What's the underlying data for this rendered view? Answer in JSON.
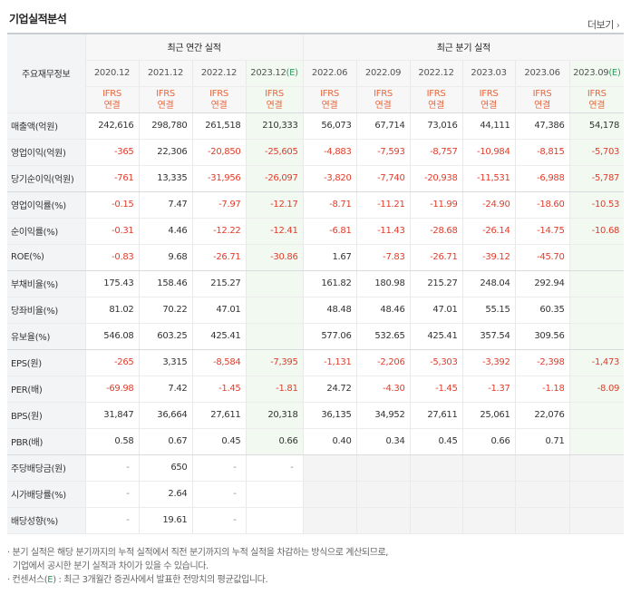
{
  "section": {
    "title": "기업실적분석",
    "more_label": "더보기",
    "more_arrow": "›"
  },
  "header": {
    "corner_label": "주요재무정보",
    "groups": [
      {
        "label": "최근 연간 실적"
      },
      {
        "label": "최근 분기 실적"
      }
    ],
    "periods": [
      {
        "label": "2020.12",
        "est_suffix": ""
      },
      {
        "label": "2021.12",
        "est_suffix": ""
      },
      {
        "label": "2022.12",
        "est_suffix": ""
      },
      {
        "label": "2023.12",
        "est_suffix": "(E)"
      },
      {
        "label": "2022.06",
        "est_suffix": ""
      },
      {
        "label": "2022.09",
        "est_suffix": ""
      },
      {
        "label": "2022.12",
        "est_suffix": ""
      },
      {
        "label": "2023.03",
        "est_suffix": ""
      },
      {
        "label": "2023.06",
        "est_suffix": ""
      },
      {
        "label": "2023.09",
        "est_suffix": "(E)"
      }
    ],
    "ifrs_line1": "IFRS",
    "ifrs_line2": "연결"
  },
  "rows": [
    {
      "label": "매출액(억원)",
      "values": [
        "242,616",
        "298,780",
        "261,518",
        "210,333",
        "56,073",
        "67,714",
        "73,016",
        "44,111",
        "47,386",
        "54,178"
      ]
    },
    {
      "label": "영업이익(억원)",
      "values": [
        "-365",
        "22,306",
        "-20,850",
        "-25,605",
        "-4,883",
        "-7,593",
        "-8,757",
        "-10,984",
        "-8,815",
        "-5,703"
      ]
    },
    {
      "label": "당기순이익(억원)",
      "values": [
        "-761",
        "13,335",
        "-31,956",
        "-26,097",
        "-3,820",
        "-7,740",
        "-20,938",
        "-11,531",
        "-6,988",
        "-5,787"
      ]
    },
    {
      "label": "영업이익률(%)",
      "values": [
        "-0.15",
        "7.47",
        "-7.97",
        "-12.17",
        "-8.71",
        "-11.21",
        "-11.99",
        "-24.90",
        "-18.60",
        "-10.53"
      ]
    },
    {
      "label": "순이익률(%)",
      "values": [
        "-0.31",
        "4.46",
        "-12.22",
        "-12.41",
        "-6.81",
        "-11.43",
        "-28.68",
        "-26.14",
        "-14.75",
        "-10.68"
      ]
    },
    {
      "label": "ROE(%)",
      "values": [
        "-0.83",
        "9.68",
        "-26.71",
        "-30.86",
        "1.67",
        "-7.83",
        "-26.71",
        "-39.12",
        "-45.70",
        ""
      ]
    },
    {
      "label": "부채비율(%)",
      "values": [
        "175.43",
        "158.46",
        "215.27",
        "",
        "161.82",
        "180.98",
        "215.27",
        "248.04",
        "292.94",
        ""
      ]
    },
    {
      "label": "당좌비율(%)",
      "values": [
        "81.02",
        "70.22",
        "47.01",
        "",
        "48.48",
        "48.46",
        "47.01",
        "55.15",
        "60.35",
        ""
      ]
    },
    {
      "label": "유보율(%)",
      "values": [
        "546.08",
        "603.25",
        "425.41",
        "",
        "577.06",
        "532.65",
        "425.41",
        "357.54",
        "309.56",
        ""
      ]
    },
    {
      "label": "EPS(원)",
      "values": [
        "-265",
        "3,315",
        "-8,584",
        "-7,395",
        "-1,131",
        "-2,206",
        "-5,303",
        "-3,392",
        "-2,398",
        "-1,473"
      ]
    },
    {
      "label": "PER(배)",
      "values": [
        "-69.98",
        "7.42",
        "-1.45",
        "-1.81",
        "24.72",
        "-4.30",
        "-1.45",
        "-1.37",
        "-1.18",
        "-8.09"
      ]
    },
    {
      "label": "BPS(원)",
      "values": [
        "31,847",
        "36,664",
        "27,611",
        "20,318",
        "36,135",
        "34,952",
        "27,611",
        "25,061",
        "22,076",
        ""
      ]
    },
    {
      "label": "PBR(배)",
      "values": [
        "0.58",
        "0.67",
        "0.45",
        "0.66",
        "0.40",
        "0.34",
        "0.45",
        "0.66",
        "0.71",
        ""
      ]
    },
    {
      "label": "주당배당금(원)",
      "values": [
        "-",
        "650",
        "-",
        "-",
        "",
        "",
        "",
        "",
        "",
        ""
      ]
    },
    {
      "label": "시가배당률(%)",
      "values": [
        "-",
        "2.64",
        "-",
        "",
        "",
        "",
        "",
        "",
        "",
        ""
      ]
    },
    {
      "label": "배당성향(%)",
      "values": [
        "-",
        "19.61",
        "-",
        "",
        "",
        "",
        "",
        "",
        "",
        ""
      ]
    }
  ],
  "notes": {
    "line1": "· 분기 실적은 해당 분기까지의 누적 실적에서 직전 분기까지의 누적 실적을 차감하는 방식으로 계산되므로,",
    "line2": "기업에서 공시한 분기 실적과 차이가 있을 수 있습니다.",
    "line3_prefix": "· 컨센서스(",
    "line3_e": "E",
    "line3_suffix": ") : 최근 3개월간 증권사에서 발표한 전망치의 평균값입니다."
  },
  "colors": {
    "negative": "#e23c2a",
    "ifrs": "#e8663c",
    "estimate_bg": "#f1f9f1",
    "estimate_text": "#2f9a5f",
    "header_bg": "#f3f4f6"
  }
}
